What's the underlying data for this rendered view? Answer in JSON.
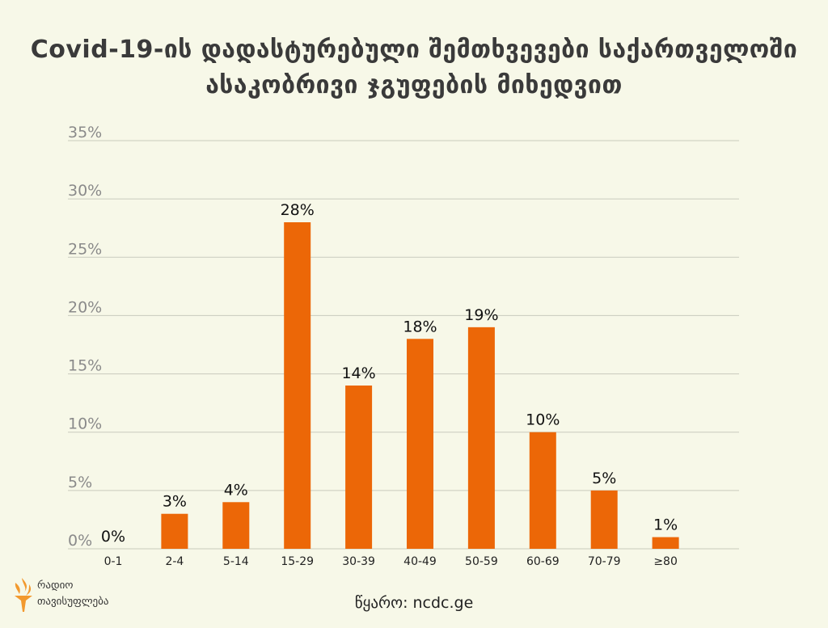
{
  "title_line1": "Covid-19-ის დადასტურებული შემთხვევები საქართველოში",
  "title_line2": "ასაკობრივი ჯგუფების მიხედვით",
  "source": "წყარო: ncdc.ge",
  "logo": {
    "line1": "რადიო",
    "line2": "თავისუფლება"
  },
  "colors": {
    "bar": "#ec6707",
    "grid": "#c9cbbd",
    "background": "#f7f8e8",
    "logo": "#f2992e"
  },
  "chart_data": {
    "type": "bar",
    "categories": [
      "0-1",
      "2-4",
      "5-14",
      "15-29",
      "30-39",
      "40-49",
      "50-59",
      "60-69",
      "70-79",
      "≥80"
    ],
    "values": [
      0,
      3,
      4,
      28,
      14,
      18,
      19,
      10,
      5,
      1
    ],
    "value_labels": [
      "0%",
      "3%",
      "4%",
      "28%",
      "14%",
      "18%",
      "19%",
      "10%",
      "5%",
      "1%"
    ],
    "ylim": [
      0,
      35
    ],
    "yticks": [
      0,
      5,
      10,
      15,
      20,
      25,
      30,
      35
    ],
    "ytick_labels": [
      "0%",
      "5%",
      "10%",
      "15%",
      "20%",
      "25%",
      "30%",
      "35%"
    ],
    "grid": true
  }
}
